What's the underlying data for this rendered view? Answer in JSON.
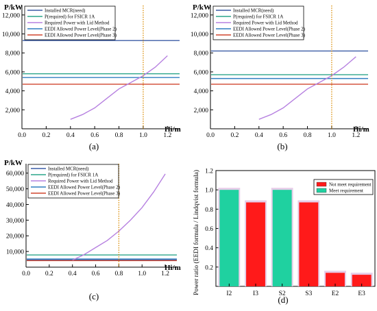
{
  "chart_data": [
    {
      "id": "a",
      "type": "line",
      "panel_label": "(a)",
      "ylabel": "P/kW",
      "xlabel": "Hi/m",
      "xlim": [
        0,
        1.3
      ],
      "ylim": [
        0,
        13000
      ],
      "x_ticks": [
        0.0,
        0.2,
        0.4,
        0.6,
        0.8,
        1.0,
        1.2
      ],
      "x_tick_labels": [
        "0.0",
        "0.2",
        "0.4",
        "0.6",
        "0.8",
        "1.0",
        "1.2"
      ],
      "y_ticks": [
        2000,
        4000,
        6000,
        8000,
        10000,
        12000
      ],
      "y_tick_labels": [
        "2,000",
        "4,000",
        "6,000",
        "8,000",
        "10,000",
        "12,000"
      ],
      "vline_x": 1.0,
      "hlines": [
        {
          "name": "Installed MCR(need)",
          "value": 9300,
          "color": "#3b5ba5"
        },
        {
          "name": "P(required) for FSICR 1A",
          "value": 5800,
          "color": "#2aa58a"
        },
        {
          "name": "EEDI Allowed Power Level(Phase 2)",
          "value": 5400,
          "color": "#2f7fc1"
        },
        {
          "name": "EEDI Allowed Power Level(Phase 3)",
          "value": 4700,
          "color": "#d0452d"
        }
      ],
      "curve": {
        "name": "Required Power with Lid Method",
        "color": "#b680e0",
        "x": [
          0.4,
          0.5,
          0.6,
          0.7,
          0.8,
          0.9,
          1.0,
          1.1,
          1.2
        ],
        "y": [
          1000,
          1500,
          2200,
          3200,
          4200,
          4900,
          5600,
          6500,
          7700
        ]
      },
      "legend_order": [
        "Installed MCR(need)",
        "P(required) for FSICR 1A",
        "Required Power with Lid Method",
        "EEDI Allowed Power Level(Phase 2)",
        "EEDI Allowed Power Level(Phase 3)"
      ]
    },
    {
      "id": "b",
      "type": "line",
      "panel_label": "(b)",
      "ylabel": "P/kW",
      "xlabel": "Hi/m",
      "xlim": [
        0,
        1.3
      ],
      "ylim": [
        0,
        13000
      ],
      "x_ticks": [
        0.0,
        0.2,
        0.4,
        0.6,
        0.8,
        1.0,
        1.2
      ],
      "x_tick_labels": [
        "0.0",
        "0.2",
        "0.4",
        "0.6",
        "0.8",
        "1.0",
        "1.2"
      ],
      "y_ticks": [
        2000,
        4000,
        6000,
        8000,
        10000,
        12000
      ],
      "y_tick_labels": [
        "2,000",
        "4,000",
        "6,000",
        "8,000",
        "10,000",
        "12,000"
      ],
      "vline_x": 1.0,
      "hlines": [
        {
          "name": "Installed MCR(need)",
          "value": 8200,
          "color": "#3b5ba5"
        },
        {
          "name": "P(required) for FSICR 1A",
          "value": 5700,
          "color": "#2aa58a"
        },
        {
          "name": "EEDI Allowed Power Level(Phase 2)",
          "value": 5300,
          "color": "#2f7fc1"
        },
        {
          "name": "EEDI Allowed Power Level(Phase 3)",
          "value": 4700,
          "color": "#d0452d"
        }
      ],
      "curve": {
        "name": "Required Power with Lid Method",
        "color": "#b680e0",
        "x": [
          0.4,
          0.5,
          0.6,
          0.7,
          0.8,
          0.9,
          1.0,
          1.1,
          1.2
        ],
        "y": [
          1000,
          1500,
          2200,
          3200,
          4200,
          4900,
          5600,
          6500,
          7600
        ]
      },
      "legend_order": [
        "Installed MCR(need)",
        "P(required) for FSICR 1A",
        "Required Power with Lid Method",
        "EEDI Allowed Power Level(Phase 2)",
        "EEDI Allowed Power Level(Phase 3)"
      ]
    },
    {
      "id": "c",
      "type": "line",
      "panel_label": "(c)",
      "ylabel": "P/kW",
      "xlabel": "Hi/m",
      "xlim": [
        0,
        1.3
      ],
      "ylim": [
        0,
        66000
      ],
      "x_ticks": [
        0.0,
        0.2,
        0.4,
        0.6,
        0.8,
        1.0,
        1.2
      ],
      "x_tick_labels": [
        "0.0",
        "0.2",
        "0.4",
        "0.6",
        "0.8",
        "1.0",
        "1.2"
      ],
      "y_ticks": [
        10000,
        20000,
        30000,
        40000,
        50000,
        60000
      ],
      "y_tick_labels": [
        "10,000",
        "20,000",
        "30,000",
        "40,000",
        "50,000",
        "60,000"
      ],
      "vline_x": 0.8,
      "hlines": [
        {
          "name": "Installed MCR(need)",
          "value": 4600,
          "color": "#3b5ba5"
        },
        {
          "name": "P(required) for FSICR 1A",
          "value": 7800,
          "color": "#2aa58a"
        },
        {
          "name": "EEDI Allowed Power Level(Phase 2)",
          "value": 5200,
          "color": "#2f7fc1"
        },
        {
          "name": "EEDI Allowed Power Level(Phase 3)",
          "value": 4200,
          "color": "#d0452d"
        }
      ],
      "curve": {
        "name": "Required Power with Lid Method",
        "color": "#b680e0",
        "x": [
          0.4,
          0.5,
          0.6,
          0.7,
          0.8,
          0.9,
          1.0,
          1.1,
          1.2
        ],
        "y": [
          4500,
          8000,
          12500,
          17000,
          23000,
          30000,
          38000,
          48000,
          59500
        ]
      },
      "legend_order": [
        "Installed MCR(need)",
        "P(required) for FSICR 1A",
        "Required Power with Lid Method",
        "EEDI Allowed Power Level(Phase 2)",
        "EEDI Allowed Power Level(Phase 3)"
      ]
    },
    {
      "id": "d",
      "type": "bar",
      "panel_label": "(d)",
      "ylabel": "Power ratio (EEDI formula / Lindqvist formula)",
      "ylim": [
        0,
        1.2
      ],
      "y_ticks": [
        0.2,
        0.4,
        0.6,
        0.8,
        1.0,
        1.2
      ],
      "y_tick_labels": [
        "0.2",
        "0.4",
        "0.6",
        "0.8",
        "1.0",
        "1.2"
      ],
      "categories": [
        "I2",
        "I3",
        "S2",
        "S3",
        "E2",
        "E3"
      ],
      "values": [
        1.0,
        0.87,
        1.0,
        0.87,
        0.14,
        0.12
      ],
      "status": [
        "meet",
        "not",
        "meet",
        "not",
        "not",
        "not"
      ],
      "colors": {
        "not": "#ff1a1a",
        "meet": "#1fd1a0"
      },
      "legend": [
        {
          "key": "not",
          "label": "Not meet requirement"
        },
        {
          "key": "meet",
          "label": "Meet requirement"
        }
      ]
    }
  ]
}
